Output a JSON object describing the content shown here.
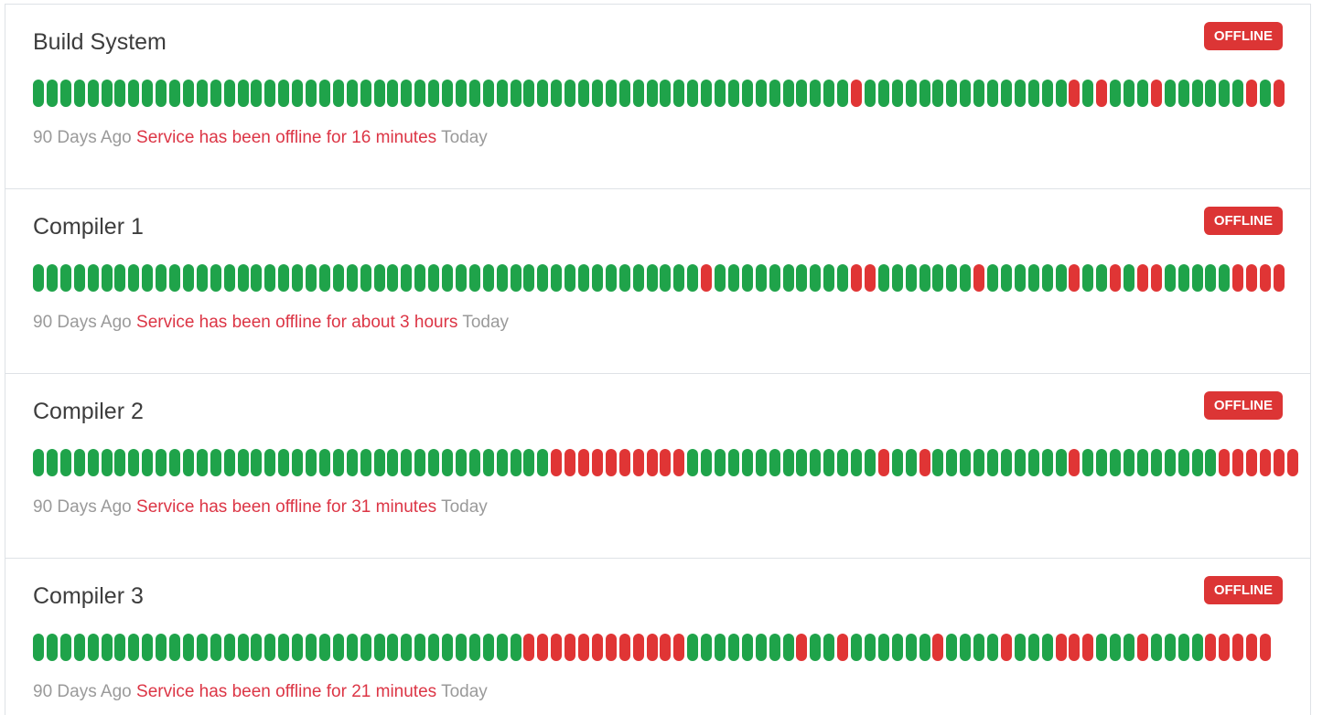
{
  "colors": {
    "up": "#1fa34a",
    "down": "#e03535",
    "badge": "#dc3535",
    "incident_text": "#dc3545",
    "muted_text": "#9a9a9a"
  },
  "services": [
    {
      "name": "Build System",
      "status": "OFFLINE",
      "start_label": "90 Days Ago",
      "message": "Service has been offline for 16 minutes",
      "end_label": "Today",
      "bars": "GGGGGGGGGGGGGGGGGGGGGGGGGGGGGGGGGGGGGGGGGGGGGGGGGGGGGGGGGGGGRGGGGGGGGGGGGGGGRGRGGGRGGGGGGRGR"
    },
    {
      "name": "Compiler 1",
      "status": "OFFLINE",
      "start_label": "90 Days Ago",
      "message": "Service has been offline for about 3 hours",
      "end_label": "Today",
      "bars": "GGGGGGGGGGGGGGGGGGGGGGGGGGGGGGGGGGGGGGGGGGGGGGGGGRGGGGGGGGGGRRGGGGGGGRGGGGGGRGGRGRRGGGGGRRRR"
    },
    {
      "name": "Compiler 2",
      "status": "OFFLINE",
      "start_label": "90 Days Ago",
      "message": "Service has been offline for 31 minutes",
      "end_label": "Today",
      "bars": "GGGGGGGGGGGGGGGGGGGGGGGGGGGGGGGGGGGGGGRRRRRRRRRRGGGGGGGGGGGGGGRGGRGGGGGGGGGGRGGGGGGGGGGRRRRRR"
    },
    {
      "name": "Compiler 3",
      "status": "OFFLINE",
      "start_label": "90 Days Ago",
      "message": "Service has been offline for 21 minutes",
      "end_label": "Today",
      "bars": "GGGGGGGGGGGGGGGGGGGGGGGGGGGGGGGGGGGGRRRRRRRRRRRRGGGGGGGGRGGRGGGGGGRGGGGRGGGRRRGGGRGGGGRRRRR"
    }
  ]
}
